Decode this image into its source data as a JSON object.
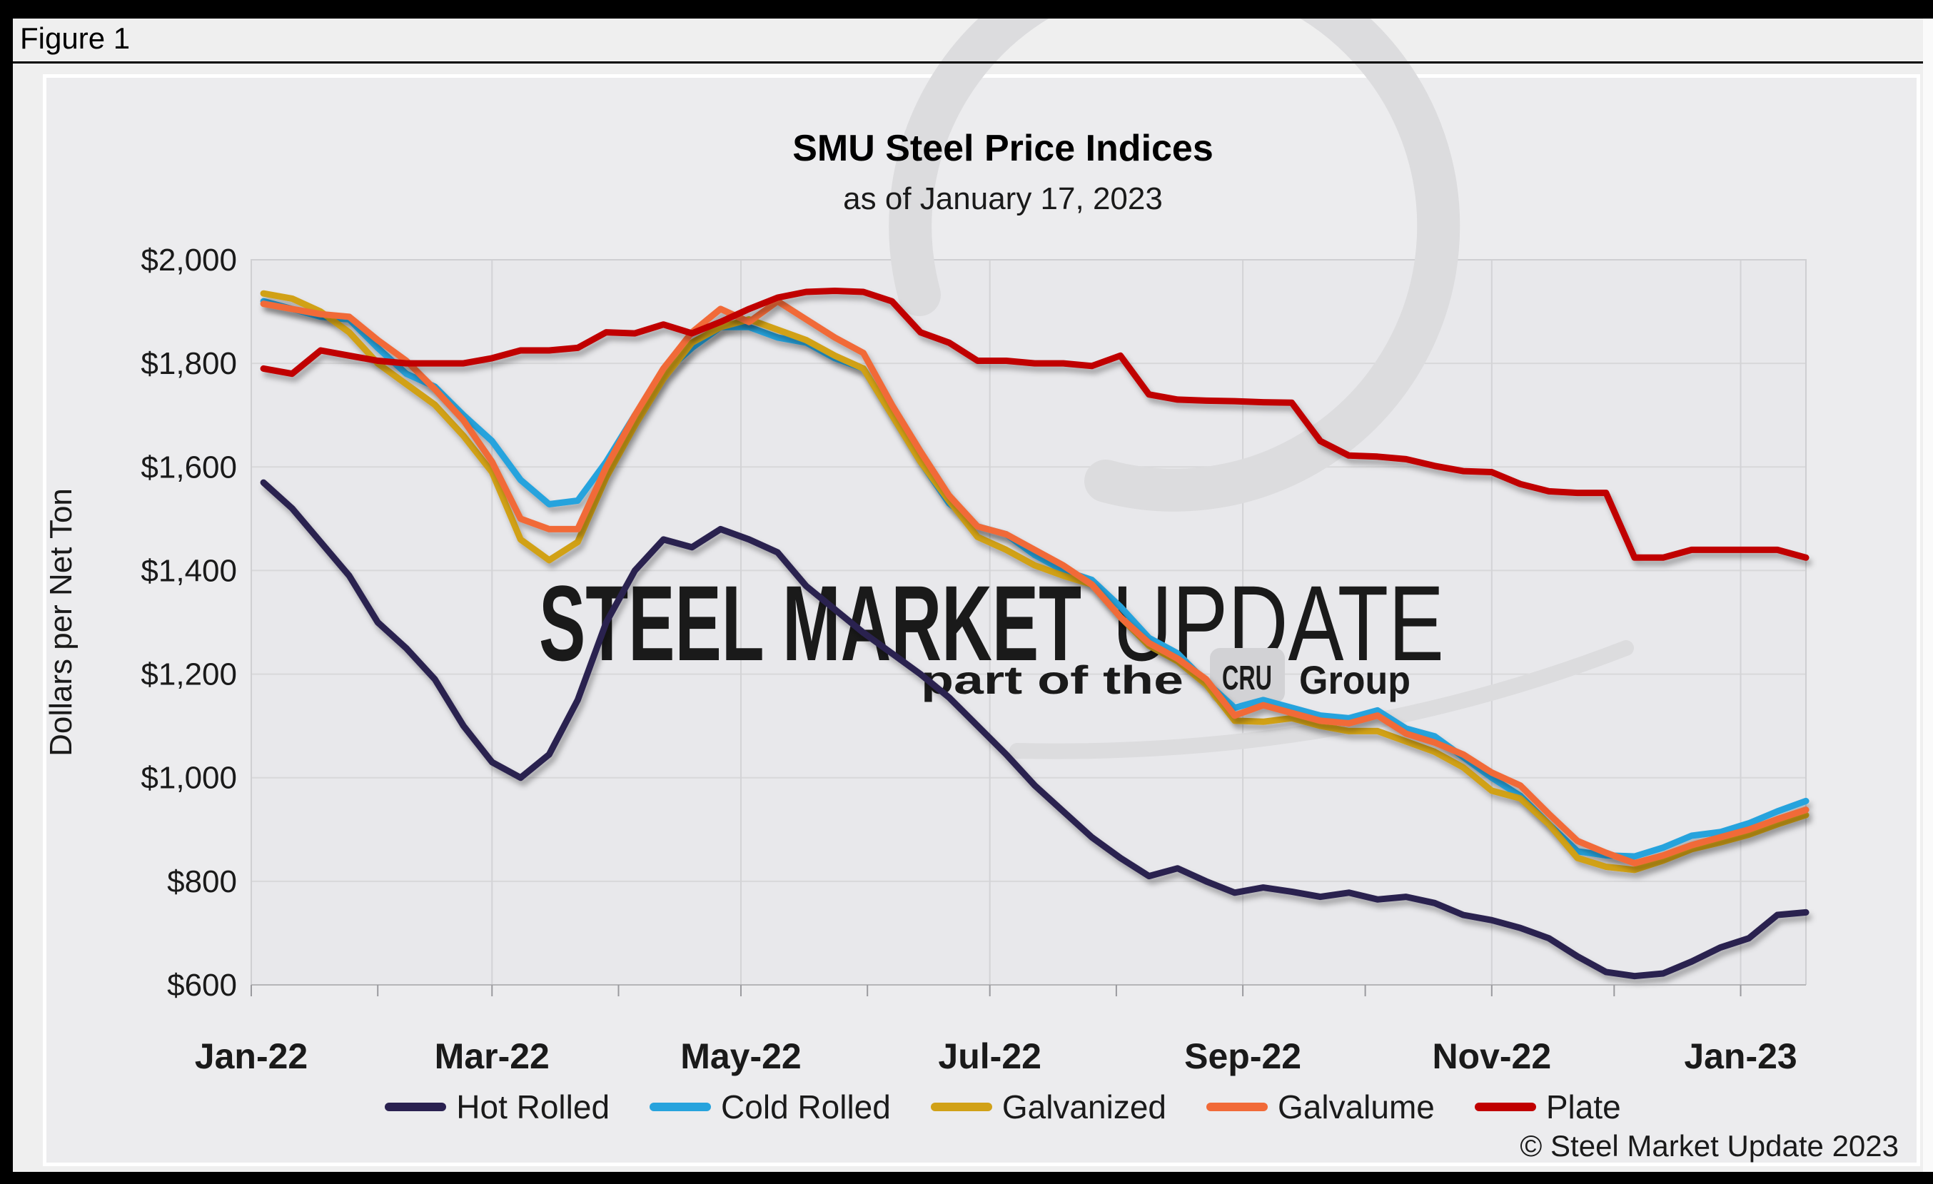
{
  "frame": {
    "figure_label": "Figure 1"
  },
  "chart_data": {
    "type": "line",
    "title": "SMU Steel Price Indices",
    "subtitle": "as of January 17, 2023",
    "ylabel": "Dollars per Net Ton",
    "ylim": [
      600,
      2000
    ],
    "grid": true,
    "legend_position": "bottom",
    "yticks": [
      {
        "value": 600,
        "label": "$600"
      },
      {
        "value": 800,
        "label": "$800"
      },
      {
        "value": 1000,
        "label": "$1,000"
      },
      {
        "value": 1200,
        "label": "$1,200"
      },
      {
        "value": 1400,
        "label": "$1,400"
      },
      {
        "value": 1600,
        "label": "$1,600"
      },
      {
        "value": 1800,
        "label": "$1,800"
      },
      {
        "value": 2000,
        "label": "$2,000"
      }
    ],
    "x_domain": [
      "2022-01-01",
      "2023-01-17"
    ],
    "months": [
      {
        "date": "2022-01-01",
        "label": "Jan-22"
      },
      {
        "date": "2022-02-01"
      },
      {
        "date": "2022-03-01",
        "label": "Mar-22"
      },
      {
        "date": "2022-04-01"
      },
      {
        "date": "2022-05-01",
        "label": "May-22"
      },
      {
        "date": "2022-06-01"
      },
      {
        "date": "2022-07-01",
        "label": "Jul-22"
      },
      {
        "date": "2022-08-01"
      },
      {
        "date": "2022-09-01",
        "label": "Sep-22"
      },
      {
        "date": "2022-10-01"
      },
      {
        "date": "2022-11-01",
        "label": "Nov-22"
      },
      {
        "date": "2022-12-01"
      },
      {
        "date": "2023-01-01",
        "label": "Jan-23"
      }
    ],
    "dates": [
      "2022-01-04",
      "2022-01-11",
      "2022-01-18",
      "2022-01-25",
      "2022-02-01",
      "2022-02-08",
      "2022-02-15",
      "2022-02-22",
      "2022-03-01",
      "2022-03-08",
      "2022-03-15",
      "2022-03-22",
      "2022-03-29",
      "2022-04-05",
      "2022-04-12",
      "2022-04-19",
      "2022-04-26",
      "2022-05-03",
      "2022-05-10",
      "2022-05-17",
      "2022-05-24",
      "2022-05-31",
      "2022-06-07",
      "2022-06-14",
      "2022-06-21",
      "2022-06-28",
      "2022-07-05",
      "2022-07-12",
      "2022-07-19",
      "2022-07-26",
      "2022-08-02",
      "2022-08-09",
      "2022-08-16",
      "2022-08-23",
      "2022-08-30",
      "2022-09-06",
      "2022-09-13",
      "2022-09-20",
      "2022-09-27",
      "2022-10-04",
      "2022-10-11",
      "2022-10-18",
      "2022-10-25",
      "2022-11-01",
      "2022-11-08",
      "2022-11-15",
      "2022-11-22",
      "2022-11-29",
      "2022-12-06",
      "2022-12-13",
      "2022-12-20",
      "2022-12-27",
      "2023-01-03",
      "2023-01-10",
      "2023-01-17"
    ],
    "series": [
      {
        "name": "Hot Rolled",
        "color": "#2a2150",
        "values": [
          1570,
          1520,
          1455,
          1390,
          1300,
          1250,
          1190,
          1100,
          1030,
          1000,
          1045,
          1150,
          1300,
          1400,
          1460,
          1445,
          1480,
          1460,
          1435,
          1370,
          1325,
          1280,
          1240,
          1200,
          1155,
          1100,
          1045,
          985,
          935,
          885,
          845,
          810,
          825,
          800,
          778,
          788,
          780,
          770,
          778,
          765,
          770,
          758,
          735,
          725,
          710,
          690,
          655,
          625,
          617,
          622,
          645,
          672,
          690,
          735,
          740
        ]
      },
      {
        "name": "Cold Rolled",
        "color": "#27a3dd",
        "values": [
          1920,
          1905,
          1890,
          1885,
          1830,
          1780,
          1755,
          1700,
          1650,
          1575,
          1528,
          1535,
          1610,
          1700,
          1780,
          1830,
          1870,
          1870,
          1850,
          1840,
          1810,
          1790,
          1700,
          1610,
          1530,
          1485,
          1470,
          1430,
          1400,
          1382,
          1330,
          1270,
          1240,
          1185,
          1135,
          1150,
          1135,
          1120,
          1115,
          1130,
          1095,
          1080,
          1040,
          1000,
          965,
          910,
          858,
          850,
          848,
          865,
          888,
          895,
          912,
          935,
          955
        ]
      },
      {
        "name": "Galvanized",
        "color": "#d1a117",
        "values": [
          1935,
          1925,
          1900,
          1860,
          1800,
          1760,
          1720,
          1660,
          1590,
          1460,
          1420,
          1455,
          1580,
          1680,
          1770,
          1840,
          1870,
          1885,
          1865,
          1845,
          1815,
          1790,
          1700,
          1610,
          1535,
          1465,
          1440,
          1410,
          1390,
          1373,
          1310,
          1255,
          1225,
          1180,
          1110,
          1108,
          1115,
          1100,
          1090,
          1090,
          1070,
          1050,
          1020,
          975,
          960,
          910,
          845,
          828,
          822,
          840,
          862,
          875,
          890,
          910,
          928
        ]
      },
      {
        "name": "Galvalume",
        "color": "#f16a38",
        "values": [
          1915,
          1905,
          1895,
          1890,
          1845,
          1805,
          1750,
          1690,
          1610,
          1500,
          1480,
          1480,
          1600,
          1700,
          1790,
          1860,
          1905,
          1880,
          1920,
          1885,
          1850,
          1820,
          1720,
          1630,
          1545,
          1485,
          1470,
          1440,
          1410,
          1373,
          1310,
          1260,
          1230,
          1190,
          1120,
          1140,
          1125,
          1110,
          1105,
          1120,
          1085,
          1068,
          1045,
          1010,
          985,
          930,
          878,
          855,
          835,
          850,
          870,
          885,
          900,
          920,
          938
        ]
      },
      {
        "name": "Plate",
        "color": "#c00000",
        "values": [
          1790,
          1780,
          1825,
          1815,
          1805,
          1800,
          1800,
          1800,
          1810,
          1825,
          1825,
          1830,
          1860,
          1858,
          1875,
          1858,
          1880,
          1905,
          1927,
          1938,
          1940,
          1938,
          1920,
          1860,
          1840,
          1805,
          1805,
          1800,
          1800,
          1795,
          1815,
          1740,
          1730,
          1728,
          1727,
          1725,
          1724,
          1650,
          1622,
          1620,
          1615,
          1602,
          1592,
          1590,
          1567,
          1553,
          1550,
          1550,
          1425,
          1425,
          1440,
          1440,
          1440,
          1440,
          1425
        ]
      }
    ],
    "watermark": {
      "line1_bold": "STEEL MARKET",
      "line1_light": "UPDATE",
      "line2_prefix": "part of the",
      "line2_logo": "CRU",
      "line2_suffix": "Group"
    },
    "copyright": "© Steel Market Update 2023"
  }
}
